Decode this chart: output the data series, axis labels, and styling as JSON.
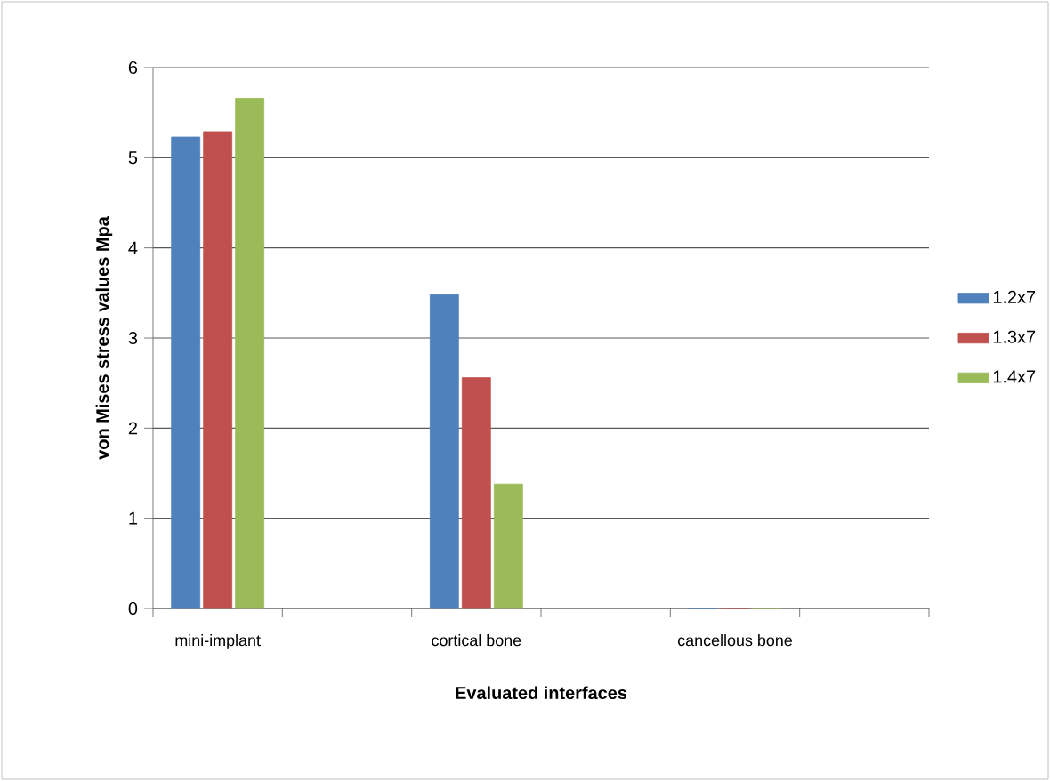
{
  "chart_data": {
    "type": "bar",
    "xlabel": "Evaluated interfaces",
    "ylabel": "von Mises stress values Mpa",
    "categories": [
      "mini-implant",
      null,
      "cortical bone",
      null,
      "cancellous bone",
      null
    ],
    "series": [
      {
        "name": "1.2x7",
        "color": "#4f81bd",
        "values": [
          5.23,
          null,
          3.48,
          null,
          0,
          null
        ]
      },
      {
        "name": "1.3x7",
        "color": "#c0504d",
        "values": [
          5.29,
          null,
          2.56,
          null,
          0,
          null
        ]
      },
      {
        "name": "1.4x7",
        "color": "#9bbb59",
        "values": [
          5.66,
          null,
          1.38,
          null,
          0,
          null
        ]
      }
    ],
    "ylim": [
      0,
      6
    ],
    "yticks": [
      0,
      1,
      2,
      3,
      4,
      5,
      6
    ],
    "grid": "y",
    "legend": "right"
  }
}
